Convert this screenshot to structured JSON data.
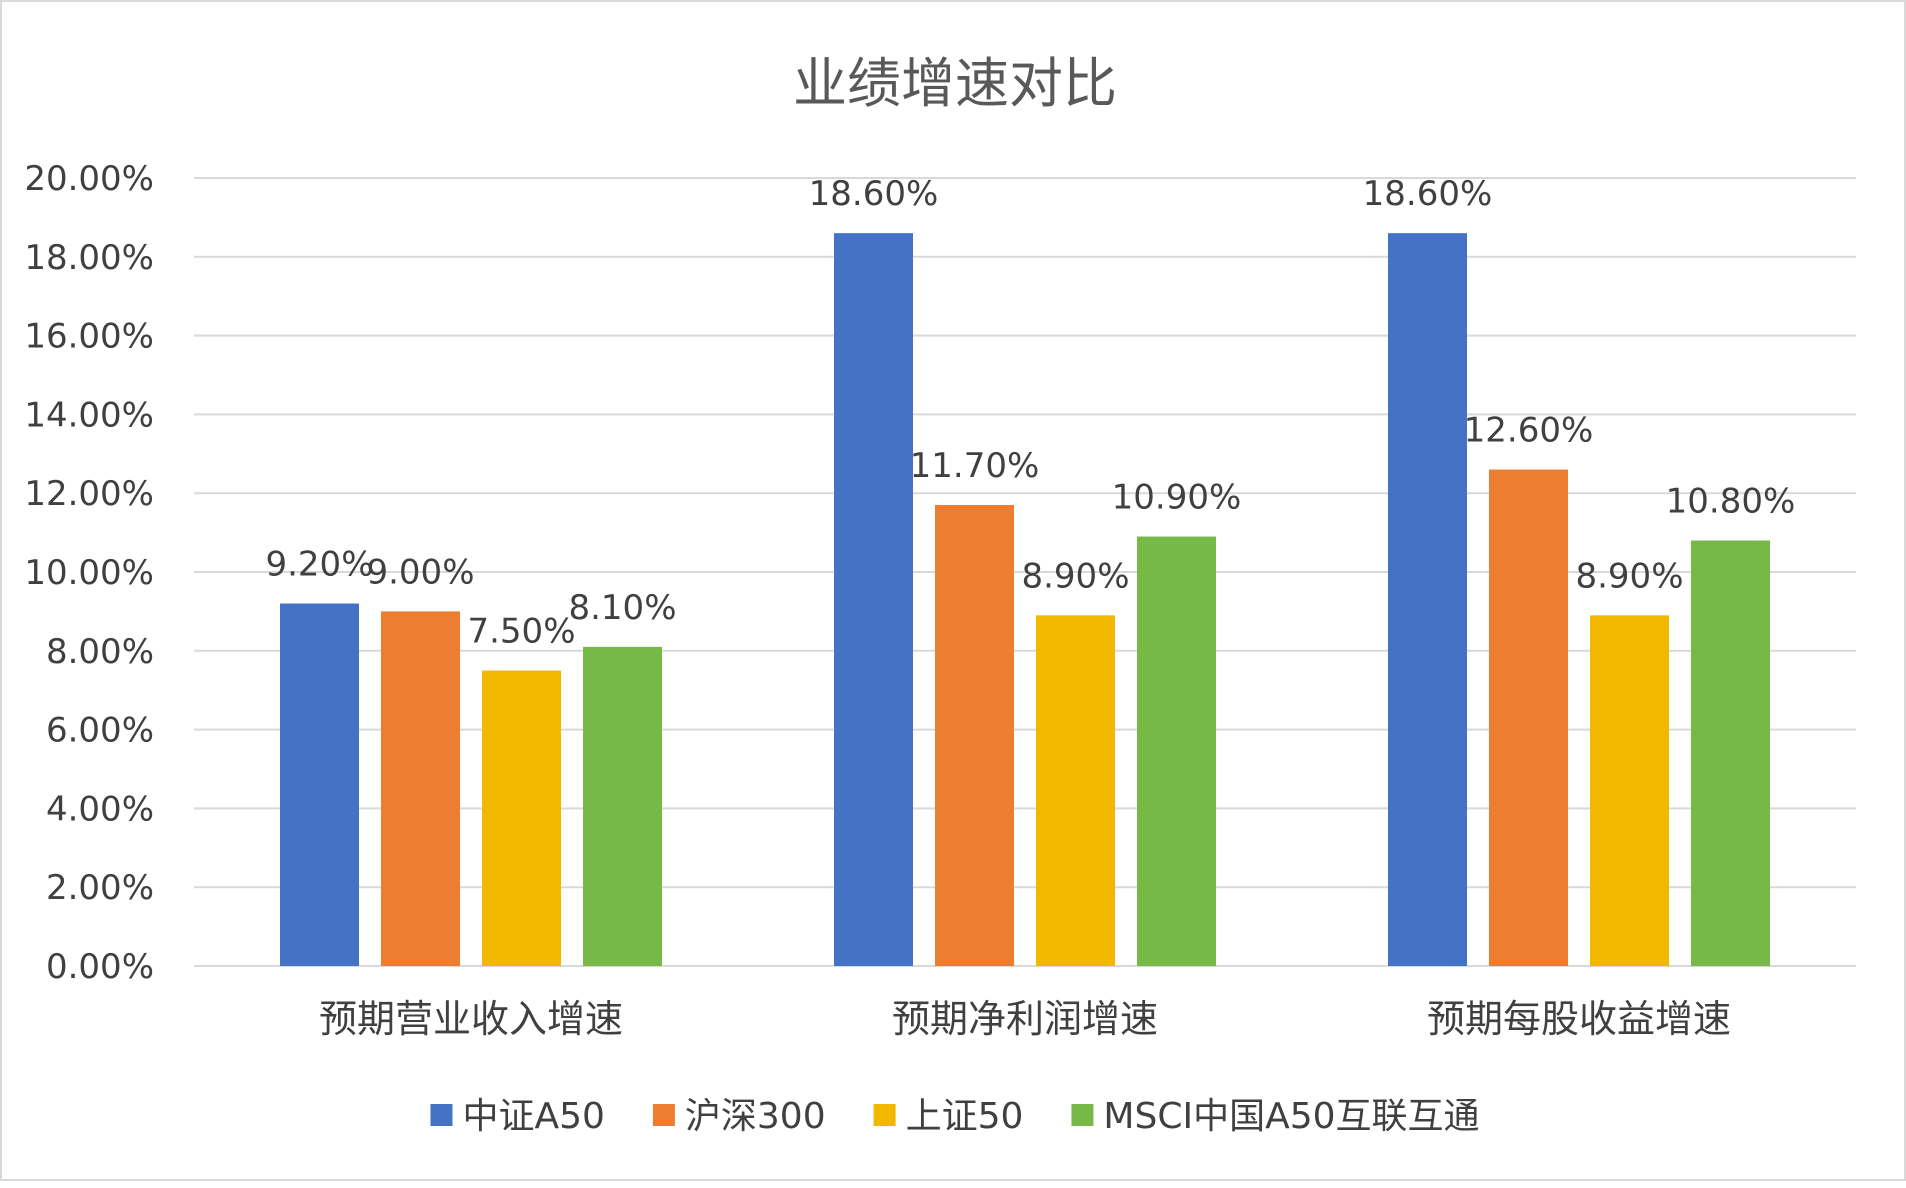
{
  "chart_data": {
    "type": "bar",
    "title": "业绩增速对比",
    "categories": [
      "预期营业收入增速",
      "预期净利润增速",
      "预期每股收益增速"
    ],
    "series": [
      {
        "name": "中证A50",
        "color": "#4472C4",
        "values": [
          9.2,
          18.6,
          18.6
        ],
        "labels": [
          "9.20%",
          "18.60%",
          "18.60%"
        ]
      },
      {
        "name": "沪深300",
        "color": "#ED7D31",
        "values": [
          9.0,
          11.7,
          12.6
        ],
        "labels": [
          "9.00%",
          "11.70%",
          "12.60%"
        ]
      },
      {
        "name": "上证50",
        "color": "#F2B800",
        "values": [
          7.5,
          8.9,
          8.9
        ],
        "labels": [
          "7.50%",
          "8.90%",
          "8.90%"
        ]
      },
      {
        "name": "MSCI中国A50互联互通",
        "color": "#76B947",
        "values": [
          8.1,
          10.9,
          10.8
        ],
        "labels": [
          "8.10%",
          "10.90%",
          "10.80%"
        ]
      }
    ],
    "ylim": [
      0,
      20
    ],
    "yticks": [
      0,
      2,
      4,
      6,
      8,
      10,
      12,
      14,
      16,
      18,
      20
    ],
    "ytick_labels": [
      "0.00%",
      "2.00%",
      "4.00%",
      "6.00%",
      "8.00%",
      "10.00%",
      "12.00%",
      "14.00%",
      "16.00%",
      "18.00%",
      "20.00%"
    ],
    "grid": true,
    "legend": "bottom",
    "colors": {
      "grid": "#d9d9d9",
      "text": "#404040",
      "title": "#595959"
    }
  }
}
